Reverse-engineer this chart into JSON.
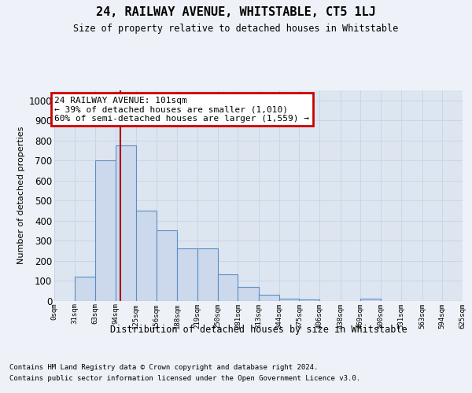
{
  "title": "24, RAILWAY AVENUE, WHITSTABLE, CT5 1LJ",
  "subtitle": "Size of property relative to detached houses in Whitstable",
  "xlabel": "Distribution of detached houses by size in Whitstable",
  "ylabel": "Number of detached properties",
  "footer1": "Contains HM Land Registry data © Crown copyright and database right 2024.",
  "footer2": "Contains public sector information licensed under the Open Government Licence v3.0.",
  "bin_labels": [
    "0sqm",
    "31sqm",
    "63sqm",
    "94sqm",
    "125sqm",
    "156sqm",
    "188sqm",
    "219sqm",
    "250sqm",
    "281sqm",
    "313sqm",
    "344sqm",
    "375sqm",
    "406sqm",
    "438sqm",
    "469sqm",
    "500sqm",
    "531sqm",
    "563sqm",
    "594sqm",
    "625sqm"
  ],
  "bin_edges": [
    0,
    31,
    63,
    94,
    125,
    156,
    188,
    219,
    250,
    281,
    313,
    344,
    375,
    406,
    438,
    469,
    500,
    531,
    563,
    594,
    625
  ],
  "bar_heights": [
    0,
    120,
    700,
    775,
    450,
    350,
    260,
    260,
    130,
    70,
    30,
    10,
    5,
    0,
    0,
    10,
    0,
    0,
    0,
    0
  ],
  "bar_facecolor": "#ccd9ec",
  "bar_edgecolor": "#5b8ec4",
  "property_size": 101,
  "vline_color": "#aa0000",
  "annotation_line1": "24 RAILWAY AVENUE: 101sqm",
  "annotation_line2": "← 39% of detached houses are smaller (1,010)",
  "annotation_line3": "60% of semi-detached houses are larger (1,559) →",
  "annotation_box_edgecolor": "#cc0000",
  "ylim": [
    0,
    1050
  ],
  "yticks": [
    0,
    100,
    200,
    300,
    400,
    500,
    600,
    700,
    800,
    900,
    1000
  ],
  "grid_color": "#c8d4e8",
  "fig_bg_color": "#eef2f8",
  "plot_bg_color": "#dde6f0"
}
